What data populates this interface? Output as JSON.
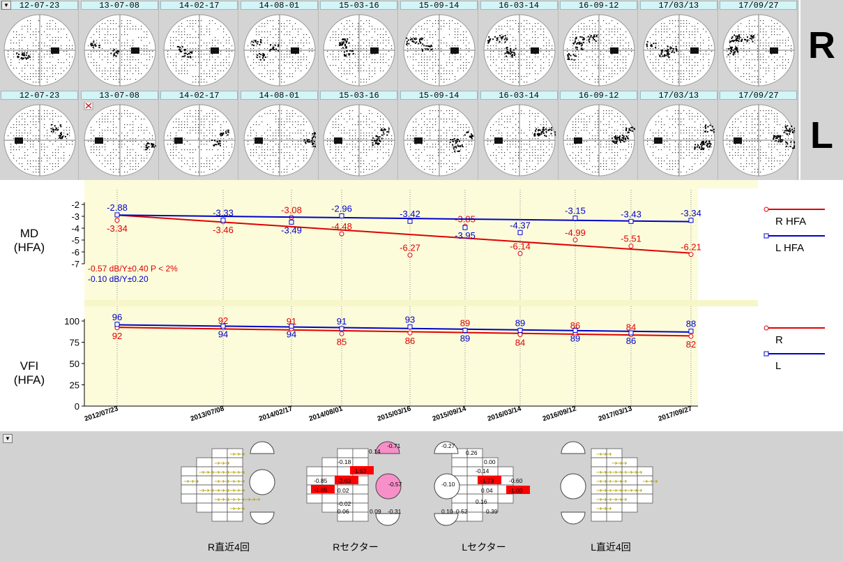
{
  "eyes": {
    "right": "R",
    "left": "L"
  },
  "dates": {
    "right": [
      "12-07-23",
      "13-07-08",
      "14-02-17",
      "14-08-01",
      "15-03-16",
      "15-09-14",
      "16-03-14",
      "16-09-12",
      "17/03/13",
      "17/09/27"
    ],
    "left": [
      "12-07-23",
      "13-07-08",
      "14-02-17",
      "14-08-01",
      "15-03-16",
      "15-09-14",
      "16-03-14",
      "16-09-12",
      "17/03/13",
      "17/09/27"
    ]
  },
  "chart_data": [
    {
      "type": "line",
      "ylabel_line1": "MD",
      "ylabel_line2": "(HFA)",
      "ylim": [
        -7,
        -2
      ],
      "yticks": [
        "-2",
        "-3",
        "-4",
        "-5",
        "-6",
        "-7"
      ],
      "x": [
        "2012/07/23",
        "2013/07/08",
        "2014/02/17",
        "2014/08/01",
        "2015/03/16",
        "2015/09/14",
        "2016/03/14",
        "2016/09/12",
        "2017/03/13",
        "2017/09/27"
      ],
      "series": [
        {
          "name": "R HFA",
          "color": "#e00000",
          "values": [
            -3.34,
            -3.46,
            -3.08,
            -4.48,
            -6.27,
            -3.85,
            -6.14,
            -4.99,
            -5.51,
            -6.21
          ],
          "labels": [
            "-3.34",
            "-3.46",
            "-3.08",
            "-4.48",
            "-6.27",
            "-3.85",
            "-6.14",
            "-4.99",
            "-5.51",
            "-6.21"
          ],
          "label_pos": [
            "below",
            "below",
            "above",
            "above",
            "above",
            "above",
            "above",
            "above",
            "above",
            "above"
          ],
          "trend": [
            -2.9,
            -6.1
          ]
        },
        {
          "name": "L HFA",
          "color": "#0000c8",
          "values": [
            -2.88,
            -3.33,
            -3.49,
            -2.96,
            -3.42,
            -3.95,
            -4.37,
            -3.15,
            -3.43,
            -3.34
          ],
          "labels": [
            "-2.88",
            "-3.33",
            "-3.49",
            "-2.96",
            "-3.42",
            "-3.95",
            "-4.37",
            "-3.15",
            "-3.43",
            "-3.34"
          ],
          "label_pos": [
            "above",
            "above",
            "below",
            "above",
            "above",
            "below",
            "above",
            "above",
            "above",
            "above"
          ],
          "trend": [
            -2.9,
            -3.45
          ]
        }
      ],
      "annotations": [
        {
          "text": "-0.57 dB/Y±0.40 P < 2%",
          "color": "#e00000"
        },
        {
          "text": "-0.10 dB/Y±0.20",
          "color": "#0000c8"
        }
      ]
    },
    {
      "type": "line",
      "ylabel_line1": "VFI",
      "ylabel_line2": "(HFA)",
      "ylim": [
        0,
        100
      ],
      "yticks": [
        "100",
        "75",
        "50",
        "25",
        "0"
      ],
      "x": [
        "2012/07/23",
        "2013/07/08",
        "2014/02/17",
        "2014/08/01",
        "2015/03/16",
        "2015/09/14",
        "2016/03/14",
        "2016/09/12",
        "2017/03/13",
        "2017/09/27"
      ],
      "series": [
        {
          "name": "R",
          "color": "#e00000",
          "values": [
            92,
            92,
            91,
            85,
            86,
            89,
            84,
            86,
            84,
            82
          ],
          "labels": [
            "92",
            "92",
            "91",
            "85",
            "86",
            "89",
            "84",
            "86",
            "84",
            "82"
          ],
          "label_pos": [
            "below",
            "above",
            "above",
            "below",
            "below",
            "above",
            "below",
            "above",
            "above",
            "below"
          ],
          "trend": [
            92.5,
            82.5
          ]
        },
        {
          "name": "L",
          "color": "#0000c8",
          "values": [
            96,
            94,
            94,
            91,
            93,
            89,
            89,
            89,
            86,
            88
          ],
          "labels": [
            "96",
            "94",
            "94",
            "91",
            "93",
            "89",
            "89",
            "89",
            "86",
            "88"
          ],
          "label_pos": [
            "above",
            "below",
            "below",
            "above",
            "above",
            "below",
            "above",
            "below",
            "below",
            "above"
          ],
          "trend": [
            95.5,
            87
          ]
        }
      ]
    }
  ],
  "bottom": {
    "r_recent": {
      "caption": "R直近4回"
    },
    "r_sector": {
      "caption": "Rセクター",
      "values": [
        "0.14",
        "-0.71",
        "-0.18",
        "-1.53",
        "-0.85",
        "-2.03",
        "-1.65",
        "0.02",
        "-0.57",
        "-0.02",
        "0.06",
        "0.09",
        "-0.31"
      ]
    },
    "l_sector": {
      "caption": "Lセクター",
      "values": [
        "-0.27",
        "0.26",
        "0.00",
        "-0.14",
        "-0.10",
        "-1.73",
        "-0.60",
        "0.04",
        "-1.00",
        "0.16",
        "0.52",
        "0.39",
        "0.10"
      ]
    },
    "l_recent": {
      "caption": "L直近4回"
    }
  }
}
